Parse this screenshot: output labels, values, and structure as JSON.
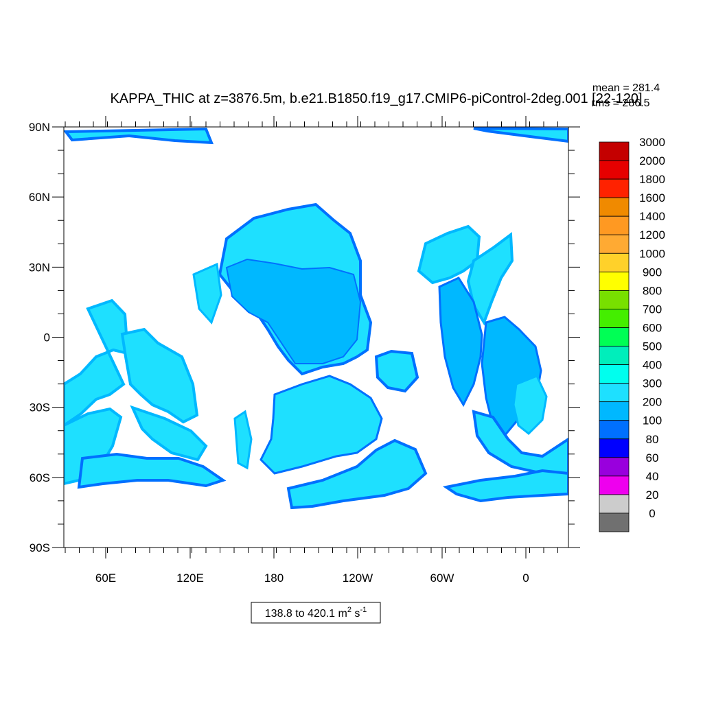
{
  "chart_data": {
    "type": "heatmap",
    "title": "KAPPA_THIC at z=3876.5m, b.e21.B1850.f19_g17.CMIP6-piControl-2deg.001 [22-120]",
    "stats": {
      "mean_text": "mean = 281.4",
      "rms_text": "rms = 286.5"
    },
    "range_label": {
      "text": "138.8 to 420.1 m",
      "sup1": "2",
      "mid": " s",
      "sup2": "-1"
    },
    "y_ticks": [
      "90N",
      "60N",
      "30N",
      "0",
      "30S",
      "60S",
      "90S"
    ],
    "x_ticks": [
      "60E",
      "120E",
      "180",
      "120W",
      "60W",
      "0"
    ],
    "colorbar": {
      "labels": [
        "3000",
        "2000",
        "1800",
        "1600",
        "1400",
        "1200",
        "1000",
        "900",
        "800",
        "700",
        "600",
        "500",
        "400",
        "300",
        "200",
        "100",
        "80",
        "60",
        "40",
        "20",
        "0"
      ],
      "colors": [
        "#c40000",
        "#e60000",
        "#ff2200",
        "#f08a00",
        "#ff9922",
        "#ffaa33",
        "#ffd12a",
        "#ffff00",
        "#78e000",
        "#44ee00",
        "#00ff55",
        "#00eebb",
        "#00ffee",
        "#1ee0ff",
        "#00b8ff",
        "#0070ff",
        "#0000ff",
        "#9900dd",
        "#ee00ee",
        "#cccccc",
        "#707070"
      ]
    },
    "colors": {
      "ocean_300_400": "#1ee0ff",
      "ocean_200_300": "#00b8ff",
      "ocean_100_200": "#0070ff",
      "land": "#ffffff"
    }
  }
}
